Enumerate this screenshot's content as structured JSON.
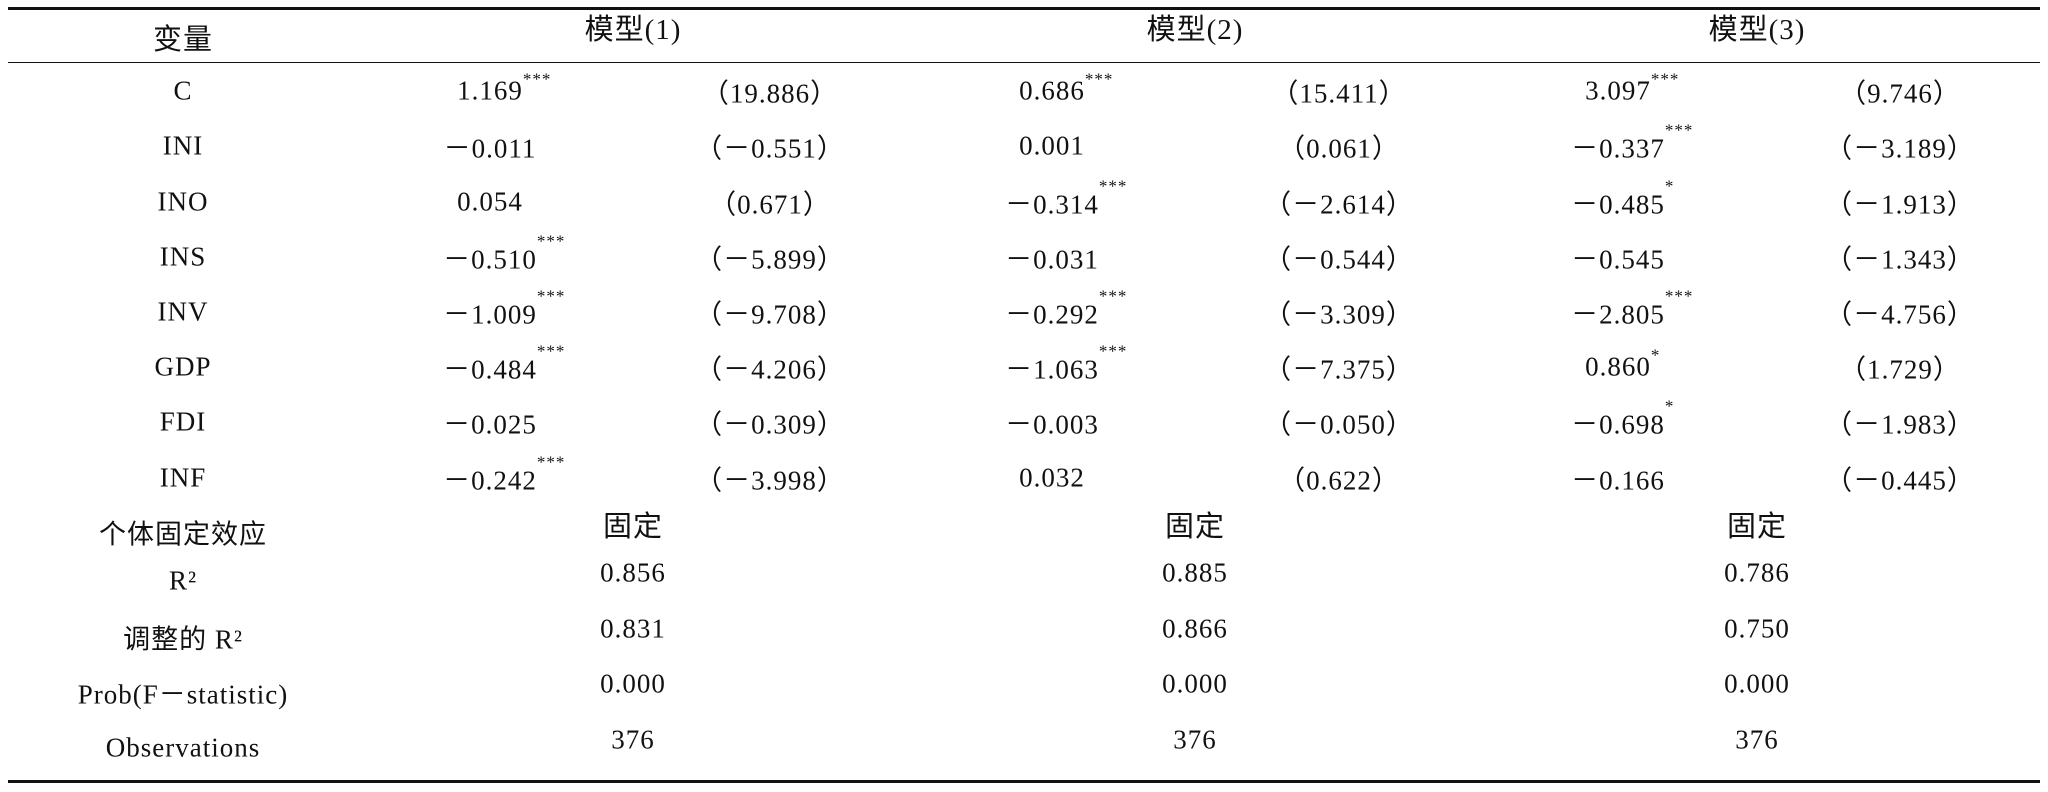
{
  "table": {
    "header": [
      "变量",
      "模型(1)",
      "模型(2)",
      "模型(3)"
    ],
    "rows": [
      {
        "variable": "C",
        "models": [
          {
            "coef": "1.169",
            "stars": "***",
            "t": "（19.886）"
          },
          {
            "coef": "0.686",
            "stars": "***",
            "t": "（15.411）"
          },
          {
            "coef": "3.097",
            "stars": "***",
            "t": "（9.746）"
          }
        ]
      },
      {
        "variable": "INI",
        "models": [
          {
            "coef": "－0.011",
            "t": "（－0.551）"
          },
          {
            "coef": "0.001",
            "t": "（0.061）"
          },
          {
            "coef": "－0.337",
            "stars": "***",
            "t": "（－3.189）"
          }
        ]
      },
      {
        "variable": "INO",
        "models": [
          {
            "coef": "0.054",
            "t": "（0.671）"
          },
          {
            "coef": "－0.314",
            "stars": "***",
            "t": "（－2.614）"
          },
          {
            "coef": "－0.485",
            "stars": "*",
            "t": "（－1.913）"
          }
        ]
      },
      {
        "variable": "INS",
        "models": [
          {
            "coef": "－0.510",
            "stars": "***",
            "t": "（－5.899）"
          },
          {
            "coef": "－0.031",
            "t": "（－0.544）"
          },
          {
            "coef": "－0.545",
            "t": "（－1.343）"
          }
        ]
      },
      {
        "variable": "INV",
        "models": [
          {
            "coef": "－1.009",
            "stars": "***",
            "t": "（－9.708）"
          },
          {
            "coef": "－0.292",
            "stars": "***",
            "t": "（－3.309）"
          },
          {
            "coef": "－2.805",
            "stars": "***",
            "t": "（－4.756）"
          }
        ]
      },
      {
        "variable": "GDP",
        "models": [
          {
            "coef": "－0.484",
            "stars": "***",
            "t": "（－4.206）"
          },
          {
            "coef": "－1.063",
            "stars": "***",
            "t": "（－7.375）"
          },
          {
            "coef": "0.860",
            "stars": "*",
            "t": "（1.729）"
          }
        ]
      },
      {
        "variable": "FDI",
        "models": [
          {
            "coef": "－0.025",
            "t": "（－0.309）"
          },
          {
            "coef": "－0.003",
            "t": "（－0.050）"
          },
          {
            "coef": "－0.698",
            "stars": "*",
            "t": "（－1.983）"
          }
        ]
      },
      {
        "variable": "INF",
        "models": [
          {
            "coef": "－0.242",
            "stars": "***",
            "t": "（－3.998）"
          },
          {
            "coef": "0.032",
            "t": "（0.622）"
          },
          {
            "coef": "－0.166",
            "t": "（－0.445）"
          }
        ]
      }
    ],
    "footer": [
      {
        "label": "个体固定效应",
        "values": [
          "固定",
          "固定",
          "固定"
        ]
      },
      {
        "label": "R²",
        "values": [
          "0.856",
          "0.885",
          "0.786"
        ]
      },
      {
        "label": "调整的 R²",
        "values": [
          "0.831",
          "0.866",
          "0.750"
        ]
      },
      {
        "label": "Prob(F－statistic)",
        "values": [
          "0.000",
          "0.000",
          "0.000"
        ]
      },
      {
        "label": "Observations",
        "values": [
          "376",
          "376",
          "376"
        ]
      }
    ]
  }
}
